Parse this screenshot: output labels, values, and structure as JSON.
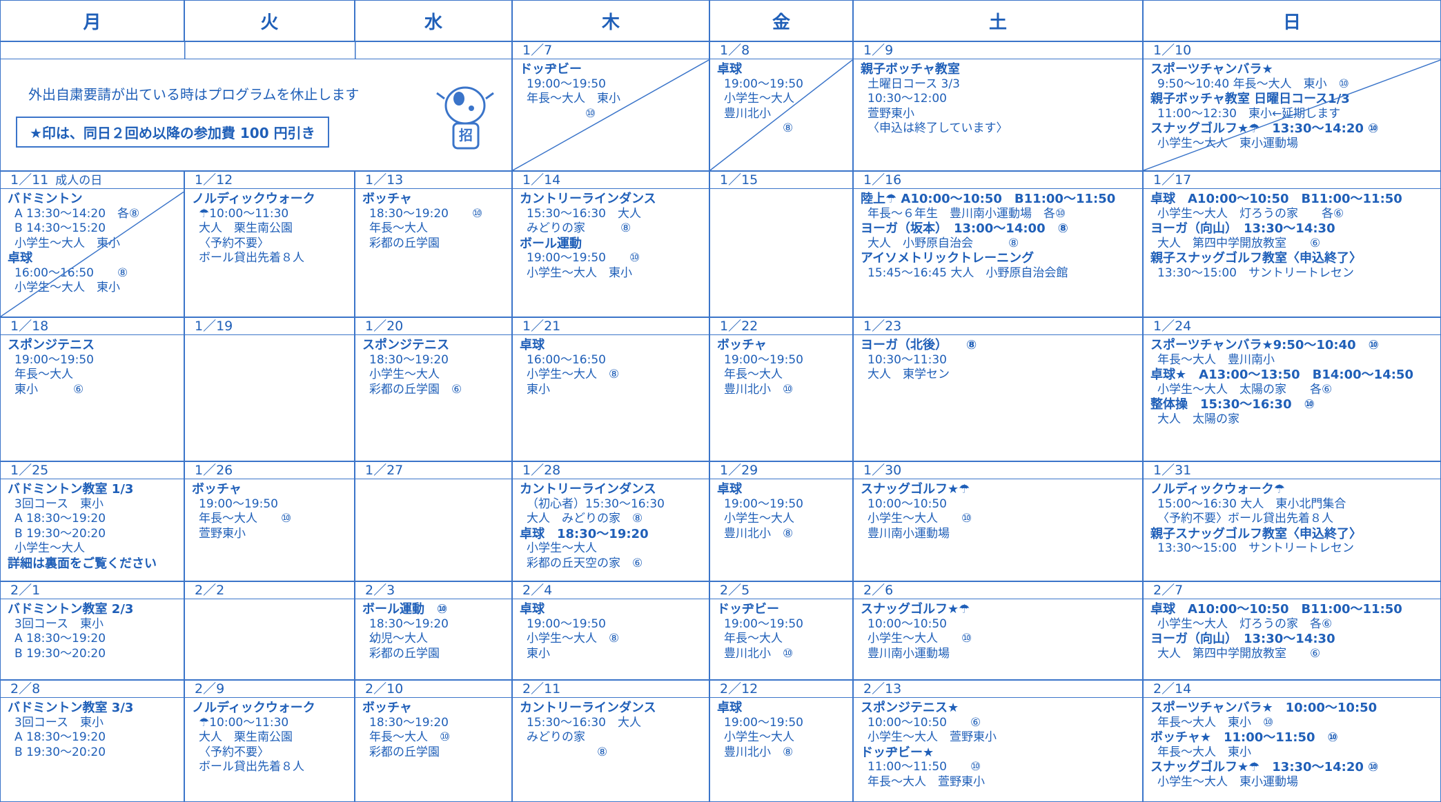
{
  "days": [
    "月",
    "火",
    "水",
    "木",
    "金",
    "土",
    "日"
  ],
  "notice": {
    "line1": "外出自粛要請が出ている時はプログラムを休止します",
    "line2": "★印は、同日２回め以降の参加費 100 円引き",
    "badge": "招"
  },
  "weeks": [
    {
      "cells": [
        {
          "date": "1／7",
          "crossed": true,
          "lines": [
            {
              "text": "ドッヂビー",
              "bold": true
            },
            "19:00〜19:50",
            "年長〜大人　東小",
            "　　　　　⑩"
          ]
        },
        {
          "date": "1／8",
          "crossed": true,
          "lines": [
            {
              "text": "卓球",
              "bold": true
            },
            "19:00〜19:50",
            "小学生〜大人",
            "豊川北小",
            "　　　　　⑧"
          ]
        },
        {
          "date": "1／9",
          "lines": [
            {
              "text": "親子ボッチャ教室",
              "bold": true
            },
            "土曜日コース 3/3",
            "10:30〜12:00",
            "萱野東小",
            "〈申込は終了しています〉"
          ]
        },
        {
          "date": "1／10",
          "crossed": true,
          "lines": [
            {
              "text": "スポーツチャンバラ★",
              "bold": true
            },
            "9:50〜10:40 年長〜大人　東小　⑩",
            {
              "text": "親子ボッチャ教室 日曜日コース1/3",
              "bold": true
            },
            "11:00〜12:30　東小←延期します",
            {
              "text": "スナッグゴルフ★☂　13:30〜14:20 ⑩",
              "bold": true
            },
            "小学生〜大人　東小運動場"
          ]
        }
      ]
    },
    {
      "cells": [
        {
          "date": "1／11",
          "note": "成人の日",
          "crossed": true,
          "lines": [
            {
              "text": "バドミントン",
              "bold": true
            },
            "A 13:30〜14:20　各⑧",
            "B 14:30〜15:20",
            "小学生〜大人　東小",
            {
              "text": "卓球",
              "bold": true
            },
            "16:00〜16:50　　⑧",
            "小学生〜大人　東小"
          ]
        },
        {
          "date": "1／12",
          "lines": [
            {
              "text": "ノルディックウォーク",
              "bold": true
            },
            "☂10:00〜11:30",
            "大人　栗生南公園",
            "〈予約不要〉",
            "ボール貸出先着８人"
          ]
        },
        {
          "date": "1／13",
          "lines": [
            {
              "text": "ボッチャ",
              "bold": true
            },
            "18:30〜19:20　　⑩",
            "年長〜大人",
            "彩都の丘学園"
          ]
        },
        {
          "date": "1／14",
          "lines": [
            {
              "text": "カントリーラインダンス",
              "bold": true
            },
            "15:30〜16:30　大人",
            "みどりの家　　　⑧",
            {
              "text": "ボール運動",
              "bold": true
            },
            "19:00〜19:50　　⑩",
            "小学生〜大人　東小"
          ]
        },
        {
          "date": "1／15",
          "lines": []
        },
        {
          "date": "1／16",
          "lines": [
            {
              "text": "陸上☂ A10:00〜10:50　B11:00〜11:50",
              "bold": true
            },
            "年長〜６年生　豊川南小運動場　各⑩",
            {
              "text": "ヨーガ（坂本）　13:00〜14:00　⑧",
              "bold": true
            },
            "大人　小野原自治会　　　⑧",
            {
              "text": "アイソメトリックトレーニング",
              "bold": true
            },
            "15:45〜16:45 大人　小野原自治会館"
          ]
        },
        {
          "date": "1／17",
          "lines": [
            {
              "text": "卓球　A10:00〜10:50　B11:00〜11:50",
              "bold": true
            },
            "小学生〜大人　灯ろうの家　　各⑥",
            {
              "text": "ヨーガ（向山）　13:30〜14:30",
              "bold": true
            },
            "大人　第四中学開放教室　　⑥",
            {
              "text": "親子スナッグゴルフ教室〈申込終了〉",
              "bold": true
            },
            "13:30〜15:00　サントリートレセン"
          ]
        }
      ]
    },
    {
      "cells": [
        {
          "date": "1／18",
          "lines": [
            {
              "text": "スポンジテニス",
              "bold": true
            },
            "19:00〜19:50",
            "年長〜大人",
            "東小　　　⑥"
          ]
        },
        {
          "date": "1／19",
          "lines": []
        },
        {
          "date": "1／20",
          "lines": [
            {
              "text": "スポンジテニス",
              "bold": true
            },
            "18:30〜19:20",
            "小学生〜大人",
            "彩都の丘学園　⑥"
          ]
        },
        {
          "date": "1／21",
          "lines": [
            {
              "text": "卓球",
              "bold": true
            },
            "16:00〜16:50",
            "小学生〜大人　⑧",
            "東小"
          ]
        },
        {
          "date": "1／22",
          "lines": [
            {
              "text": "ボッチャ",
              "bold": true
            },
            "19:00〜19:50",
            "年長〜大人",
            "豊川北小　⑩"
          ]
        },
        {
          "date": "1／23",
          "lines": [
            {
              "text": "ヨーガ（北後）　　⑧",
              "bold": true
            },
            "10:30〜11:30",
            "大人　東学セン"
          ]
        },
        {
          "date": "1／24",
          "lines": [
            {
              "text": "スポーツチャンバラ★9:50〜10:40　⑩",
              "bold": true
            },
            "年長〜大人　豊川南小",
            {
              "text": "卓球★　A13:00〜13:50　B14:00〜14:50",
              "bold": true
            },
            "小学生〜大人　太陽の家　　各⑥",
            {
              "text": "整体操　15:30〜16:30　⑩",
              "bold": true
            },
            "大人　太陽の家"
          ]
        }
      ]
    },
    {
      "cells": [
        {
          "date": "1／25",
          "lines": [
            {
              "text": "バドミントン教室 1/3",
              "bold": true
            },
            "3回コース　東小",
            "A 18:30〜19:20",
            "B 19:30〜20:20",
            "小学生〜大人",
            {
              "text": "詳細は裏面をご覧ください",
              "bold": true
            }
          ]
        },
        {
          "date": "1／26",
          "lines": [
            {
              "text": "ボッチャ",
              "bold": true
            },
            "19:00〜19:50",
            "年長〜大人　　⑩",
            "萱野東小"
          ]
        },
        {
          "date": "1／27",
          "lines": []
        },
        {
          "date": "1／28",
          "lines": [
            {
              "text": "カントリーラインダンス",
              "bold": true
            },
            "（初心者）15:30〜16:30",
            "大人　みどりの家　⑧",
            {
              "text": "卓球　18:30〜19:20",
              "bold": true
            },
            "小学生〜大人",
            "彩都の丘天空の家　⑥"
          ]
        },
        {
          "date": "1／29",
          "lines": [
            {
              "text": "卓球",
              "bold": true
            },
            "19:00〜19:50",
            "小学生〜大人",
            "豊川北小　⑧"
          ]
        },
        {
          "date": "1／30",
          "lines": [
            {
              "text": "スナッグゴルフ★☂",
              "bold": true
            },
            "10:00〜10:50",
            "小学生〜大人　　⑩",
            "豊川南小運動場"
          ]
        },
        {
          "date": "1／31",
          "lines": [
            {
              "text": "ノルディックウォーク☂",
              "bold": true
            },
            "15:00〜16:30 大人　東小北門集合",
            "〈予約不要〉ボール貸出先着８人",
            {
              "text": "親子スナッグゴルフ教室〈申込終了〉",
              "bold": true
            },
            "13:30〜15:00　サントリートレセン"
          ]
        }
      ]
    },
    {
      "cells": [
        {
          "date": "2／1",
          "lines": [
            {
              "text": "バドミントン教室 2/3",
              "bold": true
            },
            "3回コース　東小",
            "A 18:30〜19:20",
            "B 19:30〜20:20"
          ]
        },
        {
          "date": "2／2",
          "lines": []
        },
        {
          "date": "2／3",
          "lines": [
            {
              "text": "ボール運動　⑩",
              "bold": true
            },
            "18:30〜19:20",
            "幼児〜大人",
            "彩都の丘学園"
          ]
        },
        {
          "date": "2／4",
          "lines": [
            {
              "text": "卓球",
              "bold": true
            },
            "19:00〜19:50",
            "小学生〜大人　⑧",
            "東小"
          ]
        },
        {
          "date": "2／5",
          "lines": [
            {
              "text": "ドッヂビー",
              "bold": true
            },
            "19:00〜19:50",
            "年長〜大人",
            "豊川北小　⑩"
          ]
        },
        {
          "date": "2／6",
          "lines": [
            {
              "text": "スナッグゴルフ★☂",
              "bold": true
            },
            "10:00〜10:50",
            "小学生〜大人　　⑩",
            "豊川南小運動場"
          ]
        },
        {
          "date": "2／7",
          "lines": [
            {
              "text": "卓球　A10:00〜10:50　B11:00〜11:50",
              "bold": true
            },
            "小学生〜大人　灯ろうの家　各⑥",
            {
              "text": "ヨーガ（向山）　13:30〜14:30",
              "bold": true
            },
            "大人　第四中学開放教室　　⑥"
          ]
        }
      ]
    },
    {
      "cells": [
        {
          "date": "2／8",
          "lines": [
            {
              "text": "バドミントン教室 3/3",
              "bold": true
            },
            "3回コース　東小",
            "A 18:30〜19:20",
            "B 19:30〜20:20"
          ]
        },
        {
          "date": "2／9",
          "lines": [
            {
              "text": "ノルディックウォーク",
              "bold": true
            },
            "☂10:00〜11:30",
            "大人　栗生南公園",
            "〈予約不要〉",
            "ボール貸出先着８人"
          ]
        },
        {
          "date": "2／10",
          "lines": [
            {
              "text": "ボッチャ",
              "bold": true
            },
            "18:30〜19:20",
            "年長〜大人　⑩",
            "彩都の丘学園"
          ]
        },
        {
          "date": "2／11",
          "lines": [
            {
              "text": "カントリーラインダンス",
              "bold": true
            },
            "15:30〜16:30　大人",
            "みどりの家",
            "　　　　　　⑧"
          ]
        },
        {
          "date": "2／12",
          "lines": [
            {
              "text": "卓球",
              "bold": true
            },
            "19:00〜19:50",
            "小学生〜大人",
            "豊川北小　⑧"
          ]
        },
        {
          "date": "2／13",
          "lines": [
            {
              "text": "スポンジテニス★",
              "bold": true
            },
            "10:00〜10:50　　⑥",
            "小学生〜大人　萱野東小",
            {
              "text": "ドッヂビー★",
              "bold": true
            },
            "11:00〜11:50　　⑩",
            "年長〜大人　萱野東小"
          ]
        },
        {
          "date": "2／14",
          "lines": [
            {
              "text": "スポーツチャンバラ★　10:00〜10:50",
              "bold": true
            },
            "年長〜大人　東小　⑩",
            {
              "text": "ボッチャ★　11:00〜11:50　⑩",
              "bold": true
            },
            "年長〜大人　東小",
            {
              "text": "スナッグゴルフ★☂　13:30〜14:20 ⑩",
              "bold": true
            },
            "小学生〜大人　東小運動場"
          ]
        }
      ]
    }
  ]
}
